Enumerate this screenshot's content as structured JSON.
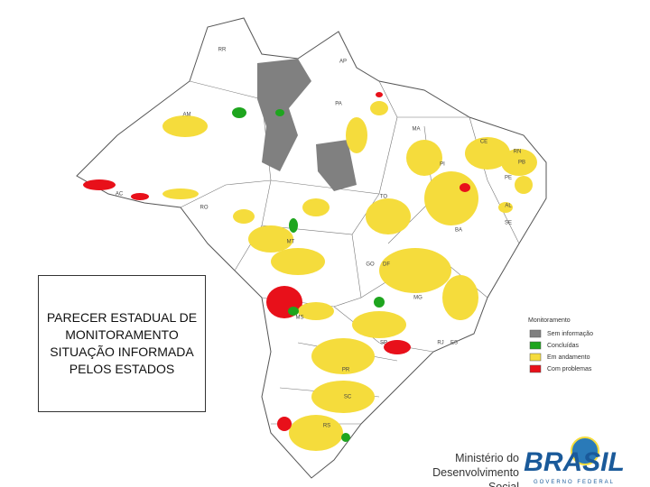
{
  "box_text": "PARECER ESTADUAL DE MONITORAMENTO SITUAÇÃO INFORMADA PELOS ESTADOS",
  "legend": {
    "title": "Monitoramento",
    "items": [
      {
        "label": "Sem informação",
        "color": "#808080"
      },
      {
        "label": "Concluídas",
        "color": "#1ea51e"
      },
      {
        "label": "Em andamento",
        "color": "#f5dc3c"
      },
      {
        "label": "Com problemas",
        "color": "#e8101a"
      }
    ]
  },
  "states": [
    "RR",
    "AP",
    "AM",
    "PA",
    "MA",
    "CE",
    "RN",
    "PB",
    "PE",
    "AL",
    "SE",
    "PI",
    "AC",
    "RO",
    "TO",
    "BA",
    "MT",
    "GO",
    "DF",
    "MG",
    "ES",
    "MS",
    "SP",
    "RJ",
    "PR",
    "SC",
    "RS"
  ],
  "footer": {
    "line1": "Ministério do",
    "line2": "Desenvolvimento",
    "line3": "Social"
  },
  "logo": {
    "text": "BRASIL",
    "subtitle": "GOVERNO FEDERAL"
  }
}
